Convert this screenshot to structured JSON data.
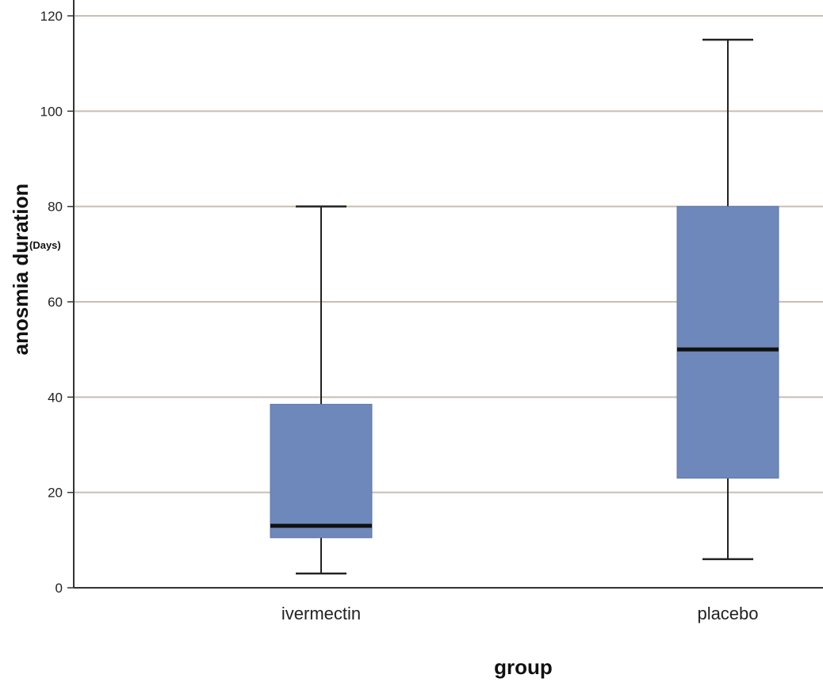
{
  "chart_data": {
    "type": "boxplot",
    "title": "",
    "xlabel": "group",
    "ylabel": "anosmia duration",
    "ylabel_unit": "(Days)",
    "ylim": [
      0,
      120
    ],
    "yticks": [
      0,
      20,
      40,
      60,
      80,
      100,
      120
    ],
    "grid": true,
    "categories": [
      "ivermectin",
      "placebo"
    ],
    "boxes": [
      {
        "category": "ivermectin",
        "min": 3,
        "q1": 10.5,
        "median": 13,
        "q3": 38.5,
        "max": 80
      },
      {
        "category": "placebo",
        "min": 6,
        "q1": 23,
        "median": 50,
        "q3": 80,
        "max": 115
      }
    ],
    "colors": {
      "box_fill": "#6f88bb",
      "median": "#111111",
      "whisker": "#222222",
      "grid": "#c8beb2",
      "axis": "#333333"
    }
  }
}
